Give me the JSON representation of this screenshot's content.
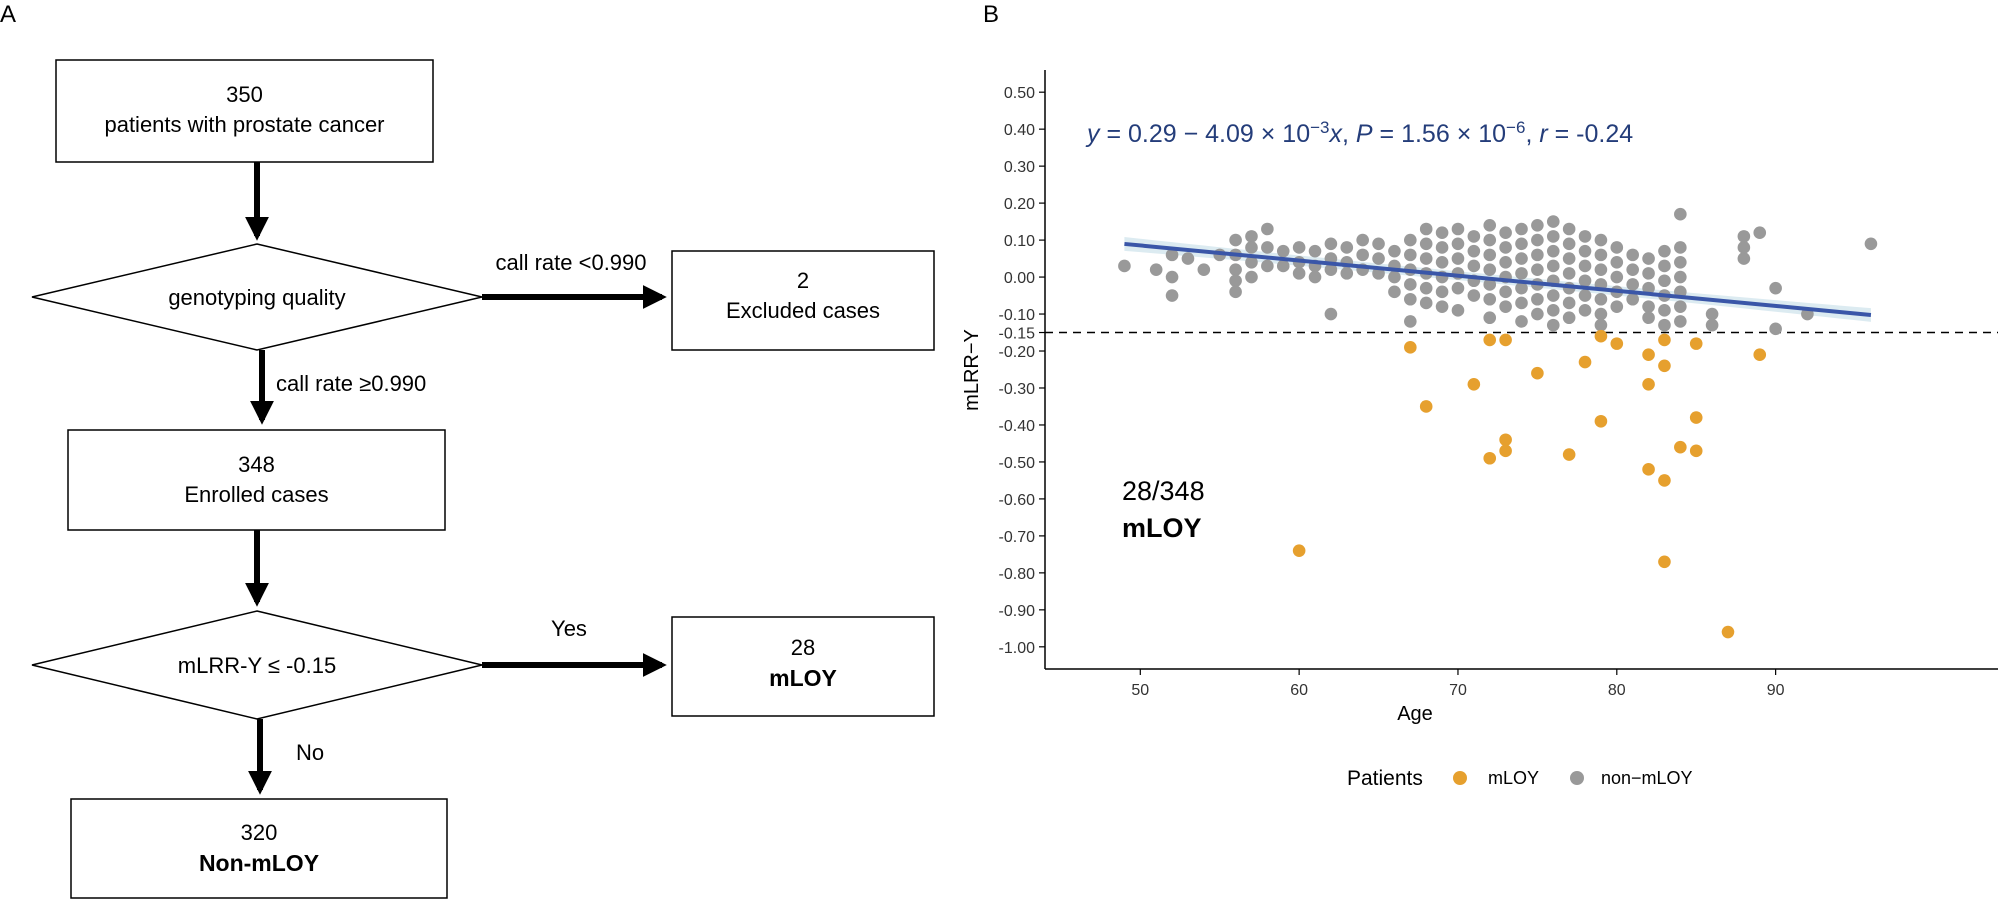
{
  "panel_a": {
    "label": "A",
    "box_start": {
      "line1": "350",
      "line2": "patients with prostate cancer"
    },
    "decision_quality": {
      "text": "genotyping quality"
    },
    "exclude_condition": "call rate <0.990",
    "include_condition": "call rate ≥0.990",
    "box_excluded": {
      "line1": "2",
      "line2": "Excluded cases"
    },
    "box_enrolled": {
      "line1": "348",
      "line2": "Enrolled cases"
    },
    "decision_mlrr": {
      "text": "mLRR-Y ≤ -0.15"
    },
    "yes_label": "Yes",
    "no_label": "No",
    "box_mloy": {
      "line1": "28",
      "line2": "mLOY"
    },
    "box_nonmloy": {
      "line1": "320",
      "line2": "Non-mLOY"
    }
  },
  "panel_b": {
    "label": "B",
    "count_text": "28/348",
    "count_label": "mLOY"
  },
  "chart_data": {
    "type": "scatter",
    "title": "",
    "xlabel": "Age",
    "ylabel": "mLRR−Y",
    "xlim": [
      44,
      104
    ],
    "ylim": [
      -1.06,
      0.56
    ],
    "x_ticks": [
      50,
      60,
      70,
      80,
      90
    ],
    "y_ticks": [
      0.5,
      0.4,
      0.3,
      0.2,
      0.1,
      0.0,
      -0.1,
      -0.15,
      -0.2,
      -0.3,
      -0.4,
      -0.5,
      -0.6,
      -0.7,
      -0.8,
      -0.9,
      -1.0
    ],
    "y_tick_labels": [
      "0.50",
      "0.40",
      "0.30",
      "0.20",
      "0.10",
      "0.00",
      "-0.10",
      "-0.15",
      "-0.20",
      "-0.30",
      "-0.40",
      "-0.50",
      "-0.60",
      "-0.70",
      "-0.80",
      "-0.90",
      "-1.00"
    ],
    "threshold": -0.15,
    "regression": {
      "intercept": 0.29,
      "slope": -0.00409,
      "x_range": [
        49,
        96
      ],
      "color": "#3a56a8",
      "band_color": "#d6e8ef",
      "equation": {
        "y": "y",
        "eq": " = 0.29 − 4.09 × 10",
        "exp1": "−3",
        "x": "x",
        "sep1": ", ",
        "P": "P",
        "eq2": " = 1.56 × 10",
        "exp2": "−6",
        "sep2": ", ",
        "r": "r",
        "eq3": " = -0.24"
      }
    },
    "legend": {
      "title": "Patients",
      "position": "bottom",
      "entries": [
        {
          "name": "mLOY",
          "color": "#e6a02e"
        },
        {
          "name": "non−mLOY",
          "color": "#999999"
        }
      ]
    },
    "series": [
      {
        "name": "mLOY",
        "color": "#e6a02e",
        "points": [
          [
            60,
            -0.74
          ],
          [
            67,
            -0.19
          ],
          [
            68,
            -0.35
          ],
          [
            71,
            -0.29
          ],
          [
            72,
            -0.17
          ],
          [
            72,
            -0.49
          ],
          [
            73,
            -0.17
          ],
          [
            73,
            -0.44
          ],
          [
            73,
            -0.47
          ],
          [
            75,
            -0.26
          ],
          [
            77,
            -0.48
          ],
          [
            78,
            -0.23
          ],
          [
            79,
            -0.16
          ],
          [
            79,
            -0.39
          ],
          [
            80,
            -0.18
          ],
          [
            82,
            -0.21
          ],
          [
            82,
            -0.29
          ],
          [
            82,
            -0.52
          ],
          [
            83,
            -0.17
          ],
          [
            83,
            -0.24
          ],
          [
            83,
            -0.55
          ],
          [
            83,
            -0.77
          ],
          [
            84,
            -0.46
          ],
          [
            85,
            -0.18
          ],
          [
            85,
            -0.38
          ],
          [
            85,
            -0.47
          ],
          [
            87,
            -0.96
          ],
          [
            89,
            -0.21
          ]
        ]
      },
      {
        "name": "non−mLOY",
        "color": "#999999",
        "points": [
          [
            49,
            0.03
          ],
          [
            51,
            0.02
          ],
          [
            52,
            0.06
          ],
          [
            52,
            0.0
          ],
          [
            52,
            -0.05
          ],
          [
            53,
            0.05
          ],
          [
            54,
            0.02
          ],
          [
            55,
            0.06
          ],
          [
            56,
            0.1
          ],
          [
            56,
            0.06
          ],
          [
            56,
            0.02
          ],
          [
            56,
            -0.01
          ],
          [
            56,
            -0.04
          ],
          [
            57,
            0.11
          ],
          [
            57,
            0.08
          ],
          [
            57,
            0.04
          ],
          [
            57,
            0.0
          ],
          [
            58,
            0.13
          ],
          [
            58,
            0.08
          ],
          [
            58,
            0.03
          ],
          [
            59,
            0.07
          ],
          [
            59,
            0.03
          ],
          [
            60,
            0.08
          ],
          [
            60,
            0.04
          ],
          [
            60,
            0.01
          ],
          [
            61,
            0.07
          ],
          [
            61,
            0.03
          ],
          [
            61,
            0.0
          ],
          [
            62,
            0.09
          ],
          [
            62,
            0.05
          ],
          [
            62,
            0.02
          ],
          [
            62,
            -0.1
          ],
          [
            63,
            0.08
          ],
          [
            63,
            0.04
          ],
          [
            63,
            0.01
          ],
          [
            64,
            0.1
          ],
          [
            64,
            0.06
          ],
          [
            64,
            0.02
          ],
          [
            65,
            0.09
          ],
          [
            65,
            0.05
          ],
          [
            65,
            0.01
          ],
          [
            66,
            0.07
          ],
          [
            66,
            0.03
          ],
          [
            66,
            0.0
          ],
          [
            66,
            -0.04
          ],
          [
            67,
            0.1
          ],
          [
            67,
            0.06
          ],
          [
            67,
            0.02
          ],
          [
            67,
            -0.02
          ],
          [
            67,
            -0.06
          ],
          [
            67,
            -0.12
          ],
          [
            68,
            0.13
          ],
          [
            68,
            0.09
          ],
          [
            68,
            0.05
          ],
          [
            68,
            0.01
          ],
          [
            68,
            -0.03
          ],
          [
            68,
            -0.07
          ],
          [
            69,
            0.12
          ],
          [
            69,
            0.08
          ],
          [
            69,
            0.04
          ],
          [
            69,
            0.0
          ],
          [
            69,
            -0.04
          ],
          [
            69,
            -0.08
          ],
          [
            70,
            0.13
          ],
          [
            70,
            0.09
          ],
          [
            70,
            0.05
          ],
          [
            70,
            0.01
          ],
          [
            70,
            -0.03
          ],
          [
            70,
            -0.09
          ],
          [
            71,
            0.11
          ],
          [
            71,
            0.07
          ],
          [
            71,
            0.03
          ],
          [
            71,
            -0.01
          ],
          [
            71,
            -0.05
          ],
          [
            72,
            0.14
          ],
          [
            72,
            0.1
          ],
          [
            72,
            0.06
          ],
          [
            72,
            0.02
          ],
          [
            72,
            -0.02
          ],
          [
            72,
            -0.06
          ],
          [
            72,
            -0.11
          ],
          [
            73,
            0.12
          ],
          [
            73,
            0.08
          ],
          [
            73,
            0.04
          ],
          [
            73,
            0.0
          ],
          [
            73,
            -0.04
          ],
          [
            73,
            -0.08
          ],
          [
            74,
            0.13
          ],
          [
            74,
            0.09
          ],
          [
            74,
            0.05
          ],
          [
            74,
            0.01
          ],
          [
            74,
            -0.03
          ],
          [
            74,
            -0.07
          ],
          [
            74,
            -0.12
          ],
          [
            75,
            0.14
          ],
          [
            75,
            0.1
          ],
          [
            75,
            0.06
          ],
          [
            75,
            0.02
          ],
          [
            75,
            -0.02
          ],
          [
            75,
            -0.06
          ],
          [
            75,
            -0.1
          ],
          [
            76,
            0.15
          ],
          [
            76,
            0.11
          ],
          [
            76,
            0.07
          ],
          [
            76,
            0.03
          ],
          [
            76,
            -0.01
          ],
          [
            76,
            -0.05
          ],
          [
            76,
            -0.09
          ],
          [
            76,
            -0.13
          ],
          [
            77,
            0.13
          ],
          [
            77,
            0.09
          ],
          [
            77,
            0.05
          ],
          [
            77,
            0.01
          ],
          [
            77,
            -0.03
          ],
          [
            77,
            -0.07
          ],
          [
            77,
            -0.11
          ],
          [
            78,
            0.11
          ],
          [
            78,
            0.07
          ],
          [
            78,
            0.03
          ],
          [
            78,
            -0.01
          ],
          [
            78,
            -0.05
          ],
          [
            78,
            -0.09
          ],
          [
            79,
            0.1
          ],
          [
            79,
            0.06
          ],
          [
            79,
            0.02
          ],
          [
            79,
            -0.02
          ],
          [
            79,
            -0.06
          ],
          [
            79,
            -0.1
          ],
          [
            79,
            -0.13
          ],
          [
            80,
            0.08
          ],
          [
            80,
            0.04
          ],
          [
            80,
            0.0
          ],
          [
            80,
            -0.04
          ],
          [
            80,
            -0.08
          ],
          [
            81,
            0.06
          ],
          [
            81,
            0.02
          ],
          [
            81,
            -0.02
          ],
          [
            81,
            -0.06
          ],
          [
            82,
            0.05
          ],
          [
            82,
            0.01
          ],
          [
            82,
            -0.03
          ],
          [
            82,
            -0.08
          ],
          [
            82,
            -0.11
          ],
          [
            83,
            0.07
          ],
          [
            83,
            0.03
          ],
          [
            83,
            -0.01
          ],
          [
            83,
            -0.05
          ],
          [
            83,
            -0.09
          ],
          [
            83,
            -0.13
          ],
          [
            84,
            0.17
          ],
          [
            84,
            0.08
          ],
          [
            84,
            0.04
          ],
          [
            84,
            0.0
          ],
          [
            84,
            -0.04
          ],
          [
            84,
            -0.08
          ],
          [
            84,
            -0.12
          ],
          [
            86,
            -0.1
          ],
          [
            86,
            -0.13
          ],
          [
            88,
            0.05
          ],
          [
            88,
            0.08
          ],
          [
            88,
            0.11
          ],
          [
            89,
            0.12
          ],
          [
            90,
            -0.03
          ],
          [
            90,
            -0.14
          ],
          [
            92,
            -0.1
          ],
          [
            96,
            0.09
          ]
        ]
      }
    ]
  }
}
